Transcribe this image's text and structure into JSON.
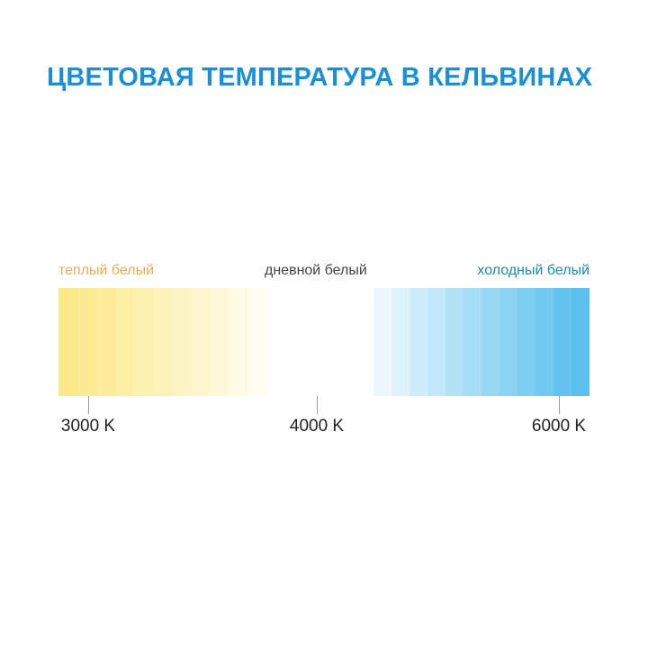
{
  "title": "ЦВЕТОВАЯ ТЕМПЕРАТУРА В КЕЛЬВИНАХ",
  "labels": {
    "warm": "теплый белый",
    "day": "дневной белый",
    "cold": "холодный белый"
  },
  "ticks": [
    {
      "label": "3000 K"
    },
    {
      "label": "4000 K"
    },
    {
      "label": "6000 K"
    }
  ],
  "colors": {
    "title": "#1b8fd6",
    "warm": "#fbe98a",
    "cold": "#5bc0ee",
    "warm_label": "#e2ad55",
    "cold_label": "#1d8c9c"
  }
}
